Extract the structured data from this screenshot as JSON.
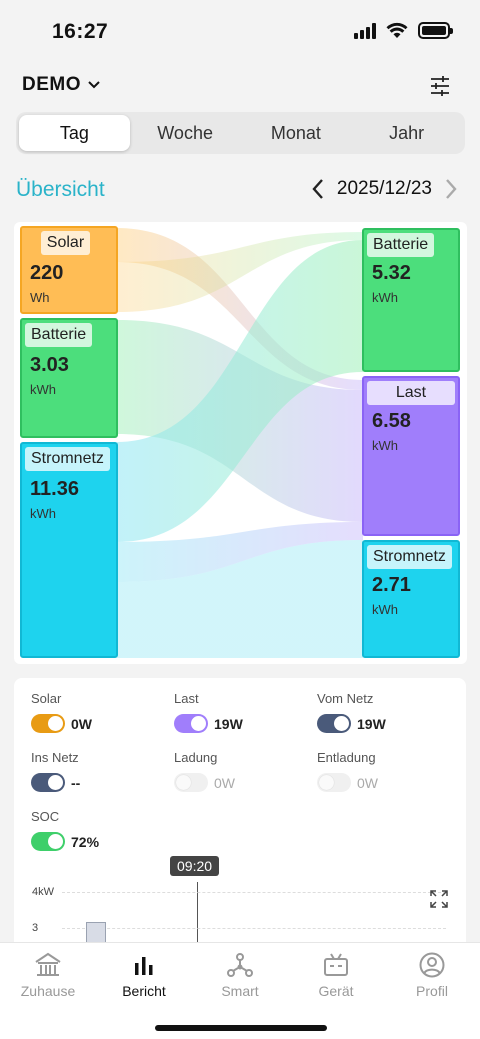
{
  "status": {
    "time": "16:27"
  },
  "header": {
    "site": "DEMO"
  },
  "tabs": [
    {
      "label": "Tag",
      "active": true
    },
    {
      "label": "Woche",
      "active": false
    },
    {
      "label": "Monat",
      "active": false
    },
    {
      "label": "Jahr",
      "active": false
    }
  ],
  "overview": {
    "title": "Übersicht",
    "date": "2025/12/23"
  },
  "sankey": {
    "sources": [
      {
        "label": "Solar",
        "value": "220",
        "unit": "Wh",
        "color": "#ffbd55"
      },
      {
        "label": "Batterie",
        "value": "3.03",
        "unit": "kWh",
        "color": "#4cde7c"
      },
      {
        "label": "Stromnetz",
        "value": "11.36",
        "unit": "kWh",
        "color": "#1ed3ee"
      }
    ],
    "targets": [
      {
        "label": "Batterie",
        "value": "5.32",
        "unit": "kWh",
        "color": "#4cde7c"
      },
      {
        "label": "Last",
        "value": "6.58",
        "unit": "kWh",
        "color": "#a07efb"
      },
      {
        "label": "Stromnetz",
        "value": "2.71",
        "unit": "kWh",
        "color": "#1ed3ee"
      }
    ]
  },
  "power": {
    "solar": {
      "label": "Solar",
      "value": "0W",
      "color": "#e89b14"
    },
    "last": {
      "label": "Last",
      "value": "19W",
      "color": "#a07efb"
    },
    "vom_netz": {
      "label": "Vom Netz",
      "value": "19W",
      "color": "#4a5a7a"
    },
    "ins_netz": {
      "label": "Ins Netz",
      "value": "--",
      "color": "#4a5a7a"
    },
    "ladung": {
      "label": "Ladung",
      "value": "0W"
    },
    "entladung": {
      "label": "Entladung",
      "value": "0W"
    },
    "soc": {
      "label": "SOC",
      "value": "72%",
      "color": "#3ecf6a"
    }
  },
  "chart": {
    "cursor_time": "09:20",
    "yticks": [
      "4kW",
      "3"
    ]
  },
  "nav": [
    {
      "label": "Zuhause",
      "icon": "home-icon",
      "active": false
    },
    {
      "label": "Bericht",
      "icon": "bar-chart-icon",
      "active": true
    },
    {
      "label": "Smart",
      "icon": "smart-icon",
      "active": false
    },
    {
      "label": "Gerät",
      "icon": "device-icon",
      "active": false
    },
    {
      "label": "Profil",
      "icon": "profile-icon",
      "active": false
    }
  ]
}
